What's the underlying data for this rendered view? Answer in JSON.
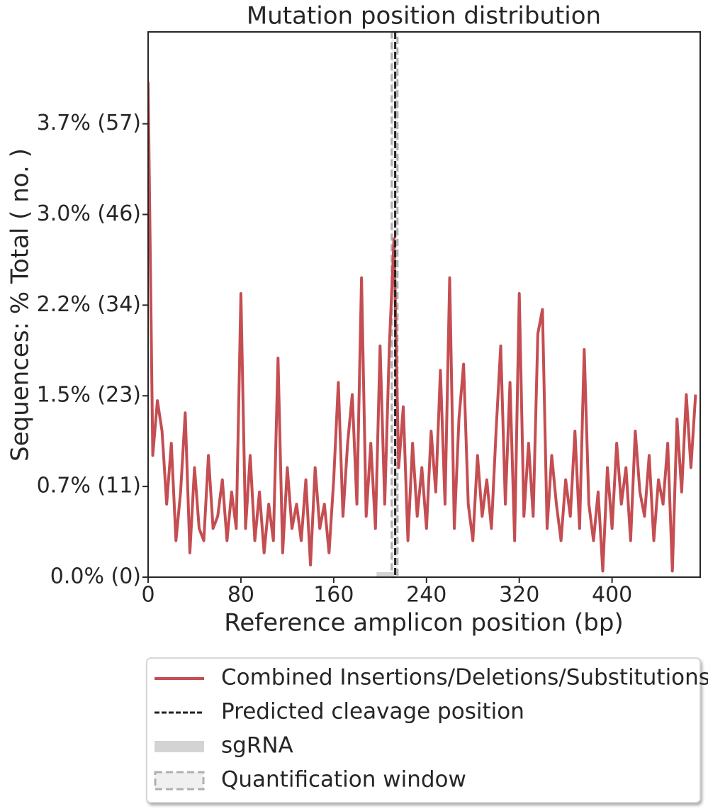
{
  "chart_data": {
    "type": "line",
    "title": "Mutation position distribution",
    "x_label": "Reference amplicon position (bp)",
    "y_label": "Sequences: % Total ( no. )",
    "x": [
      0,
      4,
      8,
      12,
      16,
      20,
      24,
      28,
      32,
      36,
      40,
      44,
      48,
      52,
      56,
      60,
      64,
      68,
      72,
      76,
      80,
      84,
      88,
      92,
      96,
      100,
      104,
      108,
      112,
      116,
      120,
      124,
      128,
      132,
      136,
      140,
      144,
      148,
      152,
      156,
      160,
      164,
      168,
      172,
      176,
      180,
      184,
      188,
      192,
      196,
      200,
      204,
      208,
      212,
      216,
      220,
      224,
      228,
      232,
      236,
      240,
      244,
      248,
      252,
      256,
      260,
      264,
      268,
      272,
      276,
      280,
      284,
      288,
      292,
      296,
      300,
      304,
      308,
      312,
      316,
      320,
      324,
      328,
      332,
      336,
      340,
      344,
      348,
      352,
      356,
      360,
      364,
      368,
      372,
      376,
      380,
      384,
      388,
      392,
      396,
      400,
      404,
      408,
      412,
      416,
      420,
      424,
      428,
      432,
      436,
      440,
      444,
      448,
      452,
      456,
      460,
      464,
      468,
      472
    ],
    "series": [
      {
        "name": "Combined Insertions/Deletions/Substitutions",
        "color": "#c44e52",
        "values": [
          4.07,
          1.0,
          1.45,
          1.2,
          0.6,
          1.1,
          0.3,
          0.7,
          1.35,
          0.2,
          0.9,
          0.4,
          0.3,
          1.0,
          0.4,
          0.5,
          0.8,
          0.3,
          0.7,
          0.4,
          2.33,
          0.4,
          1.0,
          0.3,
          0.7,
          0.2,
          0.6,
          0.3,
          1.8,
          0.2,
          0.9,
          0.4,
          0.6,
          0.3,
          0.8,
          0.1,
          0.9,
          0.4,
          0.6,
          0.2,
          0.8,
          1.6,
          0.5,
          1.1,
          1.5,
          0.6,
          2.46,
          0.5,
          1.1,
          0.4,
          1.9,
          0.6,
          1.9,
          2.78,
          0.9,
          1.4,
          0.3,
          1.1,
          0.5,
          0.9,
          0.4,
          1.2,
          0.7,
          1.7,
          0.6,
          2.46,
          0.4,
          1.3,
          1.75,
          0.6,
          0.3,
          1.0,
          0.5,
          0.8,
          0.4,
          1.2,
          1.9,
          0.6,
          1.6,
          0.3,
          2.33,
          0.5,
          1.1,
          0.5,
          2.0,
          2.2,
          0.4,
          1.0,
          0.6,
          0.3,
          0.8,
          0.5,
          1.2,
          0.4,
          1.87,
          0.6,
          0.3,
          0.7,
          0.05,
          0.9,
          0.4,
          1.1,
          0.6,
          0.9,
          0.3,
          1.2,
          0.7,
          0.5,
          1.0,
          0.3,
          0.8,
          0.6,
          1.1,
          0.05,
          1.3,
          0.7,
          1.5,
          0.9,
          1.5
        ]
      }
    ],
    "cleavage": {
      "name": "Predicted cleavage position",
      "x": 213,
      "color": "#222222"
    },
    "sgrna": {
      "name": "sgRNA",
      "range": [
        197,
        212
      ],
      "color": "#d3d3d3"
    },
    "quantification_window": {
      "name": "Quantification window",
      "range": [
        210,
        215
      ],
      "color": "#b0b0b0"
    },
    "xlim": [
      0,
      476
    ],
    "ylim": [
      0,
      4.48
    ],
    "xticks": [
      0,
      80,
      160,
      240,
      320,
      400
    ],
    "yticks": [
      {
        "value": 0,
        "label": "0.0% (0)"
      },
      {
        "value": 0.745,
        "label": "0.7% (11)"
      },
      {
        "value": 1.49,
        "label": "1.5% (23)"
      },
      {
        "value": 2.235,
        "label": "2.2% (34)"
      },
      {
        "value": 2.98,
        "label": "3.0% (46)"
      },
      {
        "value": 3.725,
        "label": "3.7% (57)"
      }
    ],
    "legend": "below"
  }
}
